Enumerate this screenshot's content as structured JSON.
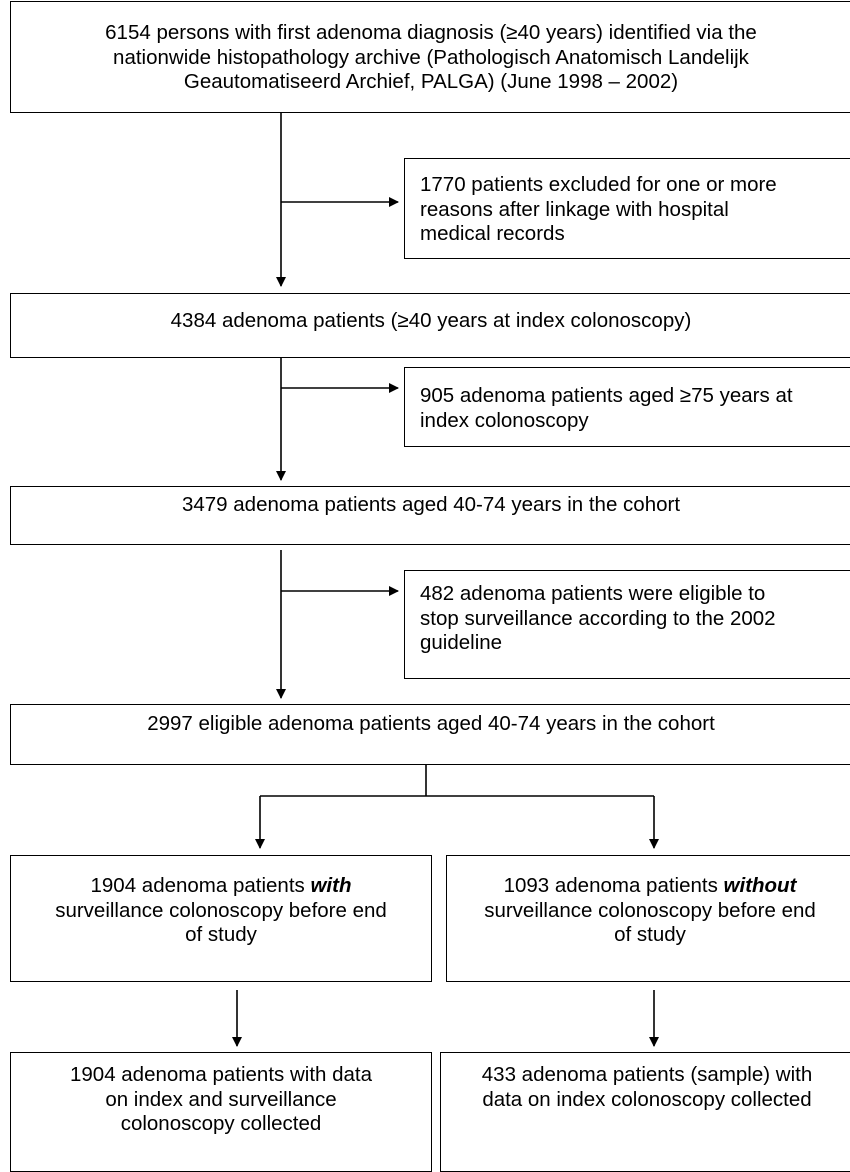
{
  "flowchart": {
    "box1": {
      "line1": "6154 persons with first adenoma diagnosis (≥40 years) identified via the",
      "line2": "nationwide histopathology archive (Pathologisch Anatomisch Landelijk",
      "line3": "Geautomatiseerd Archief, PALGA) (June 1998 – 2002)"
    },
    "excl1": {
      "line1": "1770 patients excluded for one or more",
      "line2": "reasons after linkage with hospital",
      "line3": "medical records"
    },
    "box2": {
      "line1": "4384 adenoma patients (≥40 years at index colonoscopy)"
    },
    "excl2": {
      "line1": "905 adenoma patients aged ≥75 years at",
      "line2": "index colonoscopy"
    },
    "box3": {
      "line1": "3479 adenoma patients aged 40-74 years in the cohort"
    },
    "excl3": {
      "line1": "482 adenoma patients were eligible to",
      "line2": "stop surveillance according to the 2002",
      "line3": "guideline"
    },
    "box4": {
      "line1": "2997 eligible adenoma patients aged 40-74 years in the cohort"
    },
    "left1": {
      "pre": "1904 adenoma patients ",
      "emph": "with",
      "line2": "surveillance colonoscopy before end",
      "line3": "of study"
    },
    "right1": {
      "pre": "1093 adenoma patients ",
      "emph": "without",
      "line2": "surveillance colonoscopy before end",
      "line3": "of study"
    },
    "left2": {
      "line1": "1904 adenoma patients with data",
      "line2": "on index and surveillance",
      "line3": "colonoscopy collected"
    },
    "right2": {
      "line1": "433 adenoma patients (sample) with",
      "line2": "data on index colonoscopy collected"
    }
  }
}
